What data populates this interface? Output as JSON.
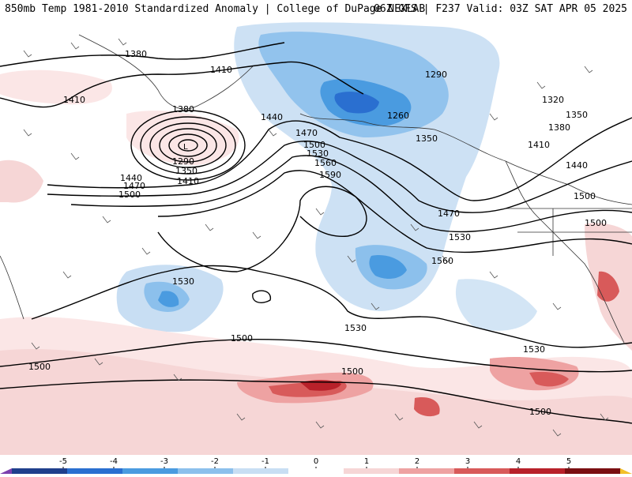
{
  "header": {
    "title": "850mb Temp 1981-2010 Standardized Anomaly | College of DuPage NEXLAB",
    "run_info": "06Z GFS | F237 Valid: 03Z SAT APR 05 2025"
  },
  "map": {
    "contour_labels": [
      "1380",
      "1410",
      "1410",
      "1380",
      "1440",
      "1470",
      "1500",
      "1530",
      "1560",
      "1590",
      "1290",
      "1350",
      "1410",
      "1440",
      "1470",
      "1500",
      "1290",
      "1260",
      "1350",
      "1320",
      "1350",
      "1380",
      "1410",
      "1440",
      "1500",
      "1470",
      "1530",
      "1560",
      "1530",
      "1530",
      "1500",
      "1500",
      "1530",
      "1500",
      "1500",
      "1500"
    ],
    "low_marker": "L"
  },
  "colorbar": {
    "ticks": [
      "-5",
      "-4",
      "-3",
      "-2",
      "-1",
      "0",
      "1",
      "2",
      "3",
      "4",
      "5"
    ],
    "colors": [
      "#7b3fae",
      "#1f3f8c",
      "#2a6fd0",
      "#4a9be0",
      "#8cc0ec",
      "#c8def3",
      "#ffffff",
      "#f6d6d6",
      "#eea2a2",
      "#d85a5a",
      "#b8212a",
      "#7a0f12",
      "#f2c02a"
    ]
  }
}
